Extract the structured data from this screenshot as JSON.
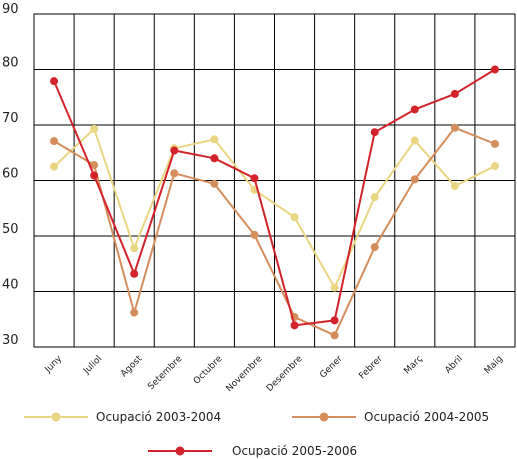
{
  "chart_data": {
    "type": "line",
    "categories": [
      "Juny",
      "Juliol",
      "Agost",
      "Setembre",
      "Octubre",
      "Novembre",
      "Desembre",
      "Gener",
      "Febrer",
      "Març",
      "Abril",
      "Maig"
    ],
    "ylim": [
      30,
      90
    ],
    "yticks": [
      30,
      40,
      50,
      60,
      70,
      80,
      90
    ],
    "grid": true,
    "legend_position": "bottom",
    "series": [
      {
        "name": "Ocupació 2003-2004",
        "color": "#ead682",
        "values": [
          62.5,
          69.3,
          47.8,
          65.8,
          67.4,
          58.3,
          53.4,
          40.7,
          57.0,
          67.2,
          59.0,
          62.6
        ]
      },
      {
        "name": "Ocupació 2004-2005",
        "color": "#d58d5b",
        "values": [
          67.1,
          62.8,
          36.2,
          61.3,
          59.4,
          50.2,
          35.4,
          32.1,
          48.0,
          60.2,
          69.5,
          66.6
        ]
      },
      {
        "name": "Ocupació 2005-2006",
        "color": "#d2232a",
        "values": [
          77.9,
          60.9,
          43.2,
          65.4,
          64.0,
          60.4,
          33.9,
          34.8,
          68.7,
          72.8,
          75.6,
          80.0
        ]
      }
    ]
  }
}
